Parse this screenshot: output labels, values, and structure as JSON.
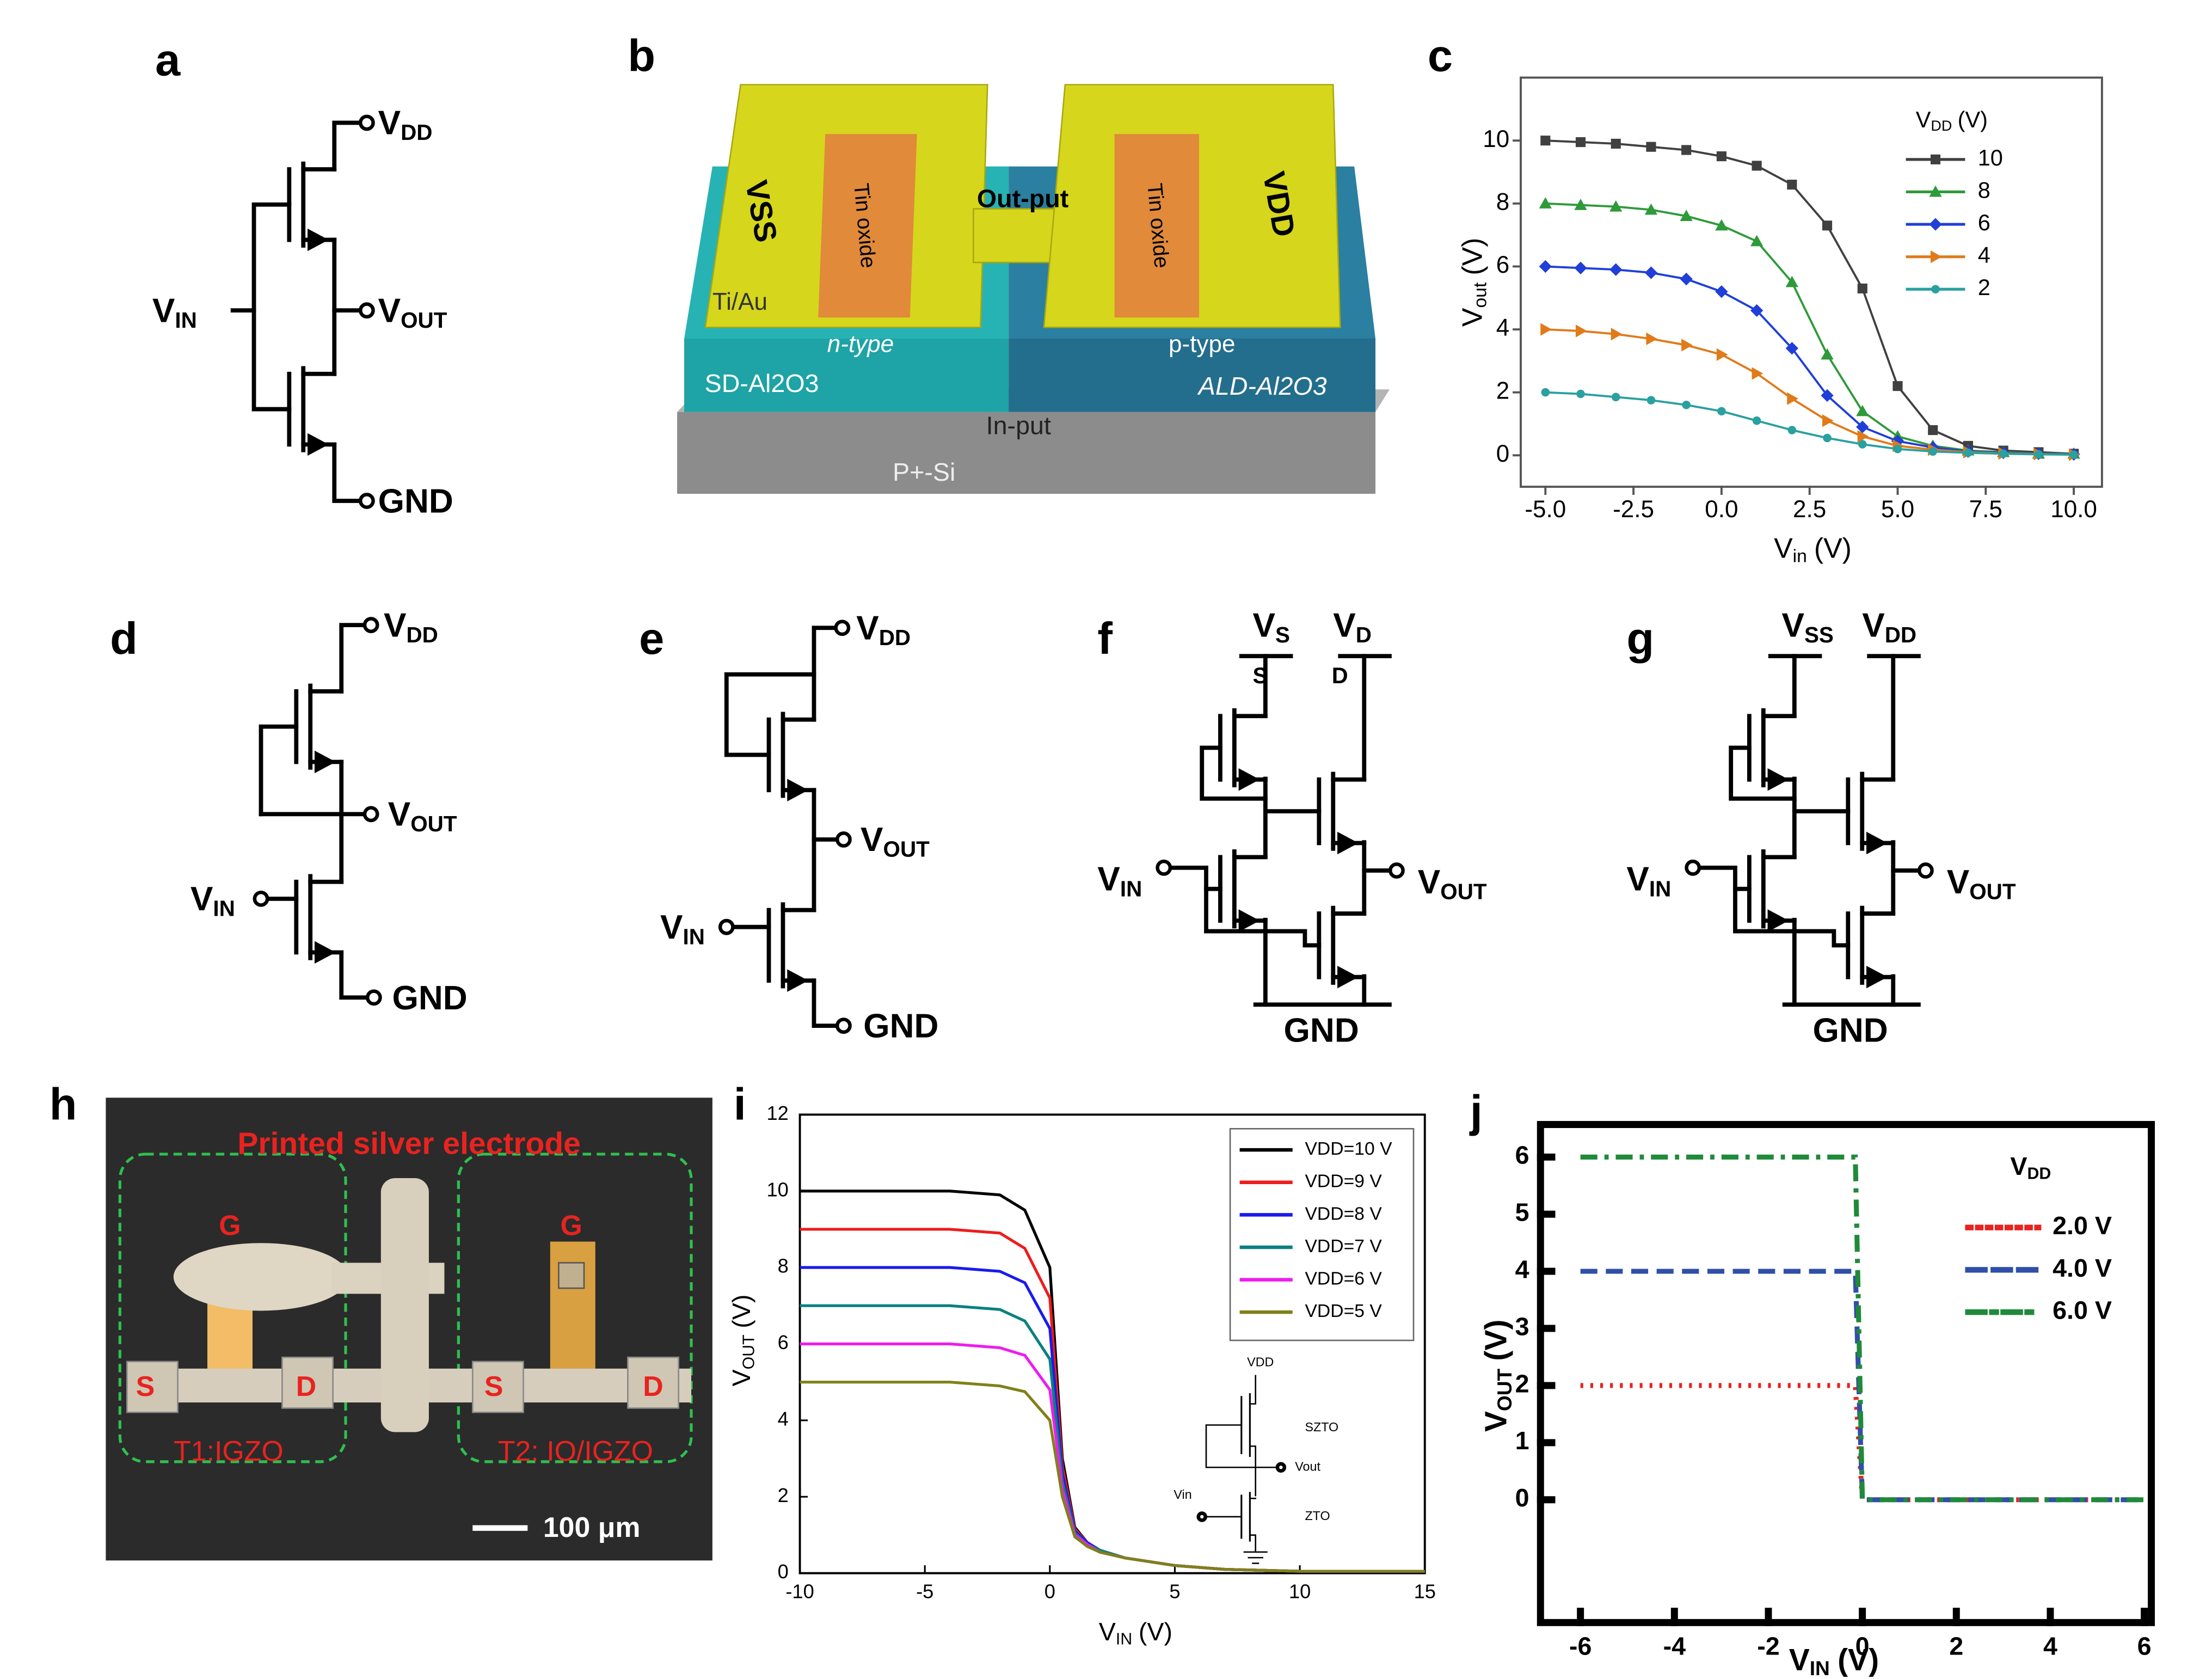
{
  "panel_labels": [
    "a",
    "b",
    "c",
    "d",
    "e",
    "f",
    "g",
    "h",
    "i",
    "j"
  ],
  "diagrams": {
    "a": {
      "vdd": {
        "base": "V",
        "sub": "DD"
      },
      "vin": {
        "base": "V",
        "sub": "IN"
      },
      "vout": {
        "base": "V",
        "sub": "OUT"
      },
      "gnd": "GND"
    },
    "d": {
      "vdd": {
        "base": "V",
        "sub": "DD"
      },
      "vin": {
        "base": "V",
        "sub": "IN"
      },
      "vout": {
        "base": "V",
        "sub": "OUT"
      },
      "gnd": "GND"
    },
    "e": {
      "vdd": {
        "base": "V",
        "sub": "DD"
      },
      "vin": {
        "base": "V",
        "sub": "IN"
      },
      "vout": {
        "base": "V",
        "sub": "OUT"
      },
      "gnd": "GND"
    },
    "f": {
      "vs": {
        "base": "V",
        "sub": "S"
      },
      "vd": {
        "base": "V",
        "sub": "D"
      },
      "s": "S",
      "d": "D",
      "vin": {
        "base": "V",
        "sub": "IN"
      },
      "vout": {
        "base": "V",
        "sub": "OUT"
      },
      "gnd": "GND"
    },
    "g": {
      "vss": {
        "base": "V",
        "sub": "SS"
      },
      "vdd": {
        "base": "V",
        "sub": "DD"
      },
      "vin": {
        "base": "V",
        "sub": "IN"
      },
      "vout": {
        "base": "V",
        "sub": "OUT"
      },
      "gnd": "GND"
    }
  },
  "device_b": {
    "vss": "VSS",
    "tin_left": "Tin oxide",
    "output": "Out-put",
    "tin_right": "Tin oxide",
    "vdd": "VDD",
    "tiau": "Ti/Au",
    "ntype": "n-type",
    "ptype": "p-type",
    "sd": "SD-Al2O3",
    "ald": "ALD-Al2O3",
    "input": "In-put",
    "si": "P+-Si"
  },
  "photo_h": {
    "title": "Printed silver electrode",
    "g1": "G",
    "g2": "G",
    "s1": "S",
    "d1": "D",
    "s2": "S",
    "d2": "D",
    "t1": "T1:IGZO",
    "t2": "T2: IO/IGZO",
    "scale": "100 μm"
  },
  "chart_data": [
    {
      "type": "line",
      "legend": "upper right",
      "x": [
        -5,
        -4,
        -3,
        -2,
        -1,
        0,
        1,
        2,
        3,
        4,
        5,
        6,
        7,
        8,
        9,
        10
      ],
      "series": [
        {
          "name": "10",
          "color": "#404040",
          "marker": "square",
          "values": [
            10,
            9.95,
            9.9,
            9.8,
            9.7,
            9.5,
            9.2,
            8.6,
            7.3,
            5.3,
            2.2,
            0.8,
            0.3,
            0.15,
            0.1,
            0.05
          ]
        },
        {
          "name": "8",
          "color": "#2e9a3a",
          "marker": "triangle",
          "values": [
            8,
            7.95,
            7.9,
            7.8,
            7.6,
            7.3,
            6.8,
            5.5,
            3.2,
            1.4,
            0.6,
            0.3,
            0.15,
            0.1,
            0.05,
            0.05
          ]
        },
        {
          "name": "6",
          "color": "#1f3fd8",
          "marker": "diamond",
          "values": [
            6,
            5.95,
            5.9,
            5.8,
            5.6,
            5.2,
            4.6,
            3.4,
            1.9,
            0.9,
            0.45,
            0.25,
            0.12,
            0.08,
            0.05,
            0.03
          ]
        },
        {
          "name": "4",
          "color": "#e07b1a",
          "marker": "triangle-right",
          "values": [
            4,
            3.95,
            3.85,
            3.7,
            3.5,
            3.2,
            2.6,
            1.8,
            1.1,
            0.6,
            0.3,
            0.18,
            0.1,
            0.06,
            0.04,
            0.02
          ]
        },
        {
          "name": "2",
          "color": "#2aa0a0",
          "marker": "star",
          "values": [
            2,
            1.95,
            1.85,
            1.75,
            1.6,
            1.4,
            1.1,
            0.8,
            0.55,
            0.35,
            0.2,
            0.12,
            0.08,
            0.05,
            0.03,
            0.02
          ]
        }
      ],
      "xlim": [
        -5.7,
        10.8
      ],
      "ylim": [
        -1,
        12
      ],
      "xticks": [
        {
          "value": -5,
          "label": "-5.0"
        },
        -2.5,
        {
          "value": 0,
          "label": "0.0"
        },
        2.5,
        {
          "value": 5,
          "label": "5.0"
        },
        7.5,
        {
          "value": 10,
          "label": "10.0"
        }
      ],
      "yticks": [
        0,
        2,
        4,
        6,
        8,
        10
      ],
      "x_label": {
        "base": "V",
        "sub": "in",
        "unit": "(V)"
      },
      "y_label": {
        "base": "V",
        "sub": "out",
        "unit": "(V)"
      },
      "legend_title": {
        "base": "V",
        "sub": "DD",
        "unit": "(V)"
      }
    },
    {
      "type": "line",
      "legend": "upper right",
      "x": [
        -10,
        -8,
        -6,
        -4,
        -2,
        -1,
        0,
        0.5,
        1,
        1.5,
        2,
        3,
        5,
        7,
        10,
        15
      ],
      "series": [
        {
          "name": "VDD=10 V",
          "color": "#000000",
          "values": [
            10,
            10,
            10,
            10,
            9.9,
            9.5,
            8,
            3,
            1.2,
            0.8,
            0.6,
            0.4,
            0.2,
            0.1,
            0.05,
            0.05
          ]
        },
        {
          "name": "VDD=9 V",
          "color": "#ee1c1c",
          "values": [
            9,
            9,
            9,
            9,
            8.9,
            8.5,
            7.2,
            2.8,
            1.15,
            0.8,
            0.6,
            0.4,
            0.2,
            0.1,
            0.05,
            0.05
          ]
        },
        {
          "name": "VDD=8 V",
          "color": "#1a1aee",
          "values": [
            8,
            8,
            8,
            8,
            7.9,
            7.6,
            6.4,
            2.6,
            1.1,
            0.8,
            0.6,
            0.4,
            0.2,
            0.1,
            0.05,
            0.05
          ]
        },
        {
          "name": "VDD=7 V",
          "color": "#0a8080",
          "values": [
            7,
            7,
            7,
            7,
            6.9,
            6.6,
            5.6,
            2.4,
            1.05,
            0.75,
            0.6,
            0.4,
            0.2,
            0.1,
            0.05,
            0.05
          ]
        },
        {
          "name": "VDD=6 V",
          "color": "#ee1cee",
          "values": [
            6,
            6,
            6,
            6,
            5.9,
            5.7,
            4.8,
            2.2,
            1,
            0.75,
            0.55,
            0.4,
            0.2,
            0.1,
            0.05,
            0.05
          ]
        },
        {
          "name": "VDD=5 V",
          "color": "#80801a",
          "values": [
            5,
            5,
            5,
            5,
            4.9,
            4.75,
            4,
            2,
            0.95,
            0.7,
            0.55,
            0.4,
            0.2,
            0.1,
            0.05,
            0.05
          ]
        }
      ],
      "xlim": [
        -10,
        15
      ],
      "ylim": [
        0,
        12
      ],
      "xticks": [
        -10,
        -5,
        0,
        5,
        10,
        15
      ],
      "yticks": [
        0,
        2,
        4,
        6,
        8,
        10,
        12
      ],
      "x_label": {
        "base": "V",
        "sub": "IN",
        "unit": "(V)"
      },
      "y_label": {
        "base": "V",
        "sub": "OUT",
        "unit": "(V)"
      },
      "inset": {
        "vdd": "VDD",
        "szto": "SZTO",
        "vout": "Vout",
        "vin": "Vin",
        "zto": "ZTO"
      }
    },
    {
      "type": "line",
      "legend": "upper right",
      "x": [
        -6,
        -0.15,
        0,
        6
      ],
      "series": [
        {
          "name": "2.0 V",
          "color": "#e8231f",
          "dash": "dotted",
          "values": [
            2,
            2,
            0,
            0
          ]
        },
        {
          "name": "4.0 V",
          "color": "#2f4fa8",
          "dash": "dashed",
          "values": [
            4,
            4,
            0,
            0
          ]
        },
        {
          "name": "6.0 V",
          "color": "#1f8a3a",
          "dash": "dashdot",
          "values": [
            6,
            6,
            0,
            0
          ]
        }
      ],
      "xlim": [
        -6.85,
        6.15
      ],
      "ylim": [
        -2.15,
        6.57
      ],
      "xticks": [
        -6,
        -4,
        -2,
        0,
        2,
        4,
        6
      ],
      "yticks": [
        0,
        1,
        2,
        3,
        4,
        5,
        6
      ],
      "x_label": {
        "base": "V",
        "sub": "IN",
        "unit": "(V)"
      },
      "y_label": {
        "base": "V",
        "sub": "OUT",
        "unit": "(V)"
      },
      "legend_title": {
        "base": "V",
        "sub": "DD"
      }
    }
  ]
}
